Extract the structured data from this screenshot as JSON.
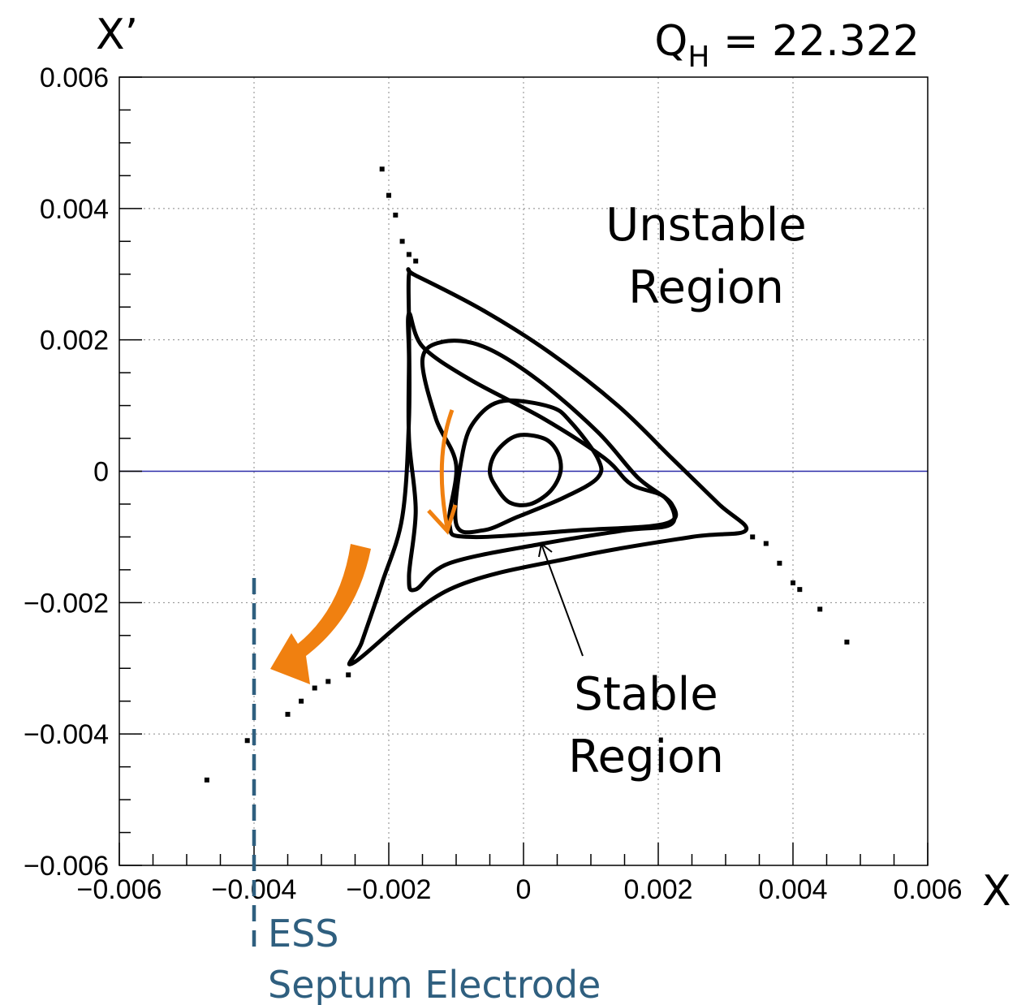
{
  "chart_data": {
    "type": "scatter",
    "title": "",
    "tune_label": {
      "prefix": "Q",
      "subscript": "H",
      "suffix": " = 22.322"
    },
    "xlabel": "X",
    "ylabel": "X’",
    "xlim": [
      -0.006,
      0.006
    ],
    "ylim": [
      -0.006,
      0.006
    ],
    "x_ticks": [
      -0.006,
      -0.004,
      -0.002,
      0,
      0.002,
      0.004,
      0.006
    ],
    "y_ticks": [
      -0.006,
      -0.004,
      -0.002,
      0,
      0.002,
      0.004,
      0.006
    ],
    "x_tick_labels": [
      "−0.006",
      "−0.004",
      "−0.002",
      "0",
      "0.002",
      "0.004",
      "0.006"
    ],
    "y_tick_labels": [
      "−0.006",
      "−0.004",
      "−0.002",
      "0",
      "0.002",
      "0.004",
      "0.006"
    ],
    "grid": true,
    "grid_style": "dotted",
    "zero_line": {
      "y": 0,
      "color": "#2a2aa8"
    },
    "series": [
      {
        "type": "closed-orbit",
        "points": [
          [
            -0.0001,
            0.00054
          ],
          [
            0.0003,
            0.0005
          ],
          [
            0.0005,
            0.0003
          ],
          [
            0.00055,
            0.0
          ],
          [
            0.0004,
            -0.0003
          ],
          [
            0.0001,
            -0.0005
          ],
          [
            -0.0002,
            -0.00048
          ],
          [
            -0.0004,
            -0.00025
          ],
          [
            -0.0005,
            0.0
          ],
          [
            -0.0004,
            0.0003
          ]
        ]
      },
      {
        "type": "closed-orbit",
        "points": [
          [
            -0.0003,
            0.00107
          ],
          [
            0.0004,
            0.00098
          ],
          [
            0.0007,
            0.00075
          ],
          [
            0.0011,
            0.0002
          ],
          [
            0.0011,
            -0.0001
          ],
          [
            0.0006,
            -0.0004
          ],
          [
            -0.0001,
            -0.0007
          ],
          [
            -0.0006,
            -0.0009
          ],
          [
            -0.001,
            -0.0008
          ],
          [
            -0.0009,
            0.0003
          ],
          [
            -0.0007,
            0.0008
          ]
        ]
      },
      {
        "type": "closed-orbit",
        "points": [
          [
            -0.0012,
            0.00197
          ],
          [
            -0.0006,
            0.0019
          ],
          [
            0.0002,
            0.0014
          ],
          [
            0.0011,
            0.0006
          ],
          [
            0.0017,
            -0.0001
          ],
          [
            0.0022,
            -0.0005
          ],
          [
            0.0021,
            -0.0008
          ],
          [
            0.0008,
            -0.0009
          ],
          [
            -0.0008,
            -0.001
          ],
          [
            -0.0011,
            -0.0008
          ],
          [
            -0.001,
            0.0001
          ],
          [
            -0.0013,
            0.0008
          ],
          [
            -0.0015,
            0.0017
          ]
        ]
      },
      {
        "type": "closed-orbit",
        "points": [
          [
            -0.0017,
            0.0017
          ],
          [
            -0.0017,
            0.0024
          ],
          [
            -0.0015,
            0.0019
          ],
          [
            -0.0008,
            0.0014
          ],
          [
            0.0003,
            0.0008
          ],
          [
            0.0012,
            0.0002
          ],
          [
            0.0016,
            -0.0002
          ],
          [
            0.0021,
            -0.0004
          ],
          [
            0.0022,
            -0.0008
          ],
          [
            0.0015,
            -0.0009
          ],
          [
            0.0003,
            -0.0011
          ],
          [
            -0.0011,
            -0.0014
          ],
          [
            -0.0016,
            -0.0018
          ],
          [
            -0.0017,
            -0.0016
          ],
          [
            -0.0016,
            -0.0006
          ],
          [
            -0.0017,
            0.0005
          ]
        ]
      },
      {
        "type": "separatrix",
        "points": [
          [
            -0.0017,
            0.003
          ],
          [
            -0.0016,
            0.00298
          ],
          [
            -0.0006,
            0.00245
          ],
          [
            0.0004,
            0.0018
          ],
          [
            0.0014,
            0.001
          ],
          [
            0.0022,
            0.0002
          ],
          [
            0.0029,
            -0.0005
          ],
          [
            0.0033,
            -0.0009
          ],
          [
            0.0025,
            -0.001
          ],
          [
            0.0008,
            -0.0013
          ],
          [
            -0.0011,
            -0.0018
          ],
          [
            -0.0025,
            -0.0029
          ],
          [
            -0.0024,
            -0.0026
          ],
          [
            -0.0021,
            -0.0017
          ],
          [
            -0.0018,
            -0.0007
          ],
          [
            -0.0017,
            0.0008
          ],
          [
            -0.0017,
            0.0022
          ]
        ]
      },
      {
        "type": "escaping-particles",
        "points": [
          [
            -0.0021,
            0.0046
          ],
          [
            -0.002,
            0.0042
          ],
          [
            -0.0019,
            0.0039
          ],
          [
            -0.0018,
            0.0035
          ],
          [
            -0.0017,
            0.0033
          ],
          [
            -0.0016,
            0.0032
          ],
          [
            0.0034,
            -0.001
          ],
          [
            0.0036,
            -0.0011
          ],
          [
            0.0038,
            -0.0014
          ],
          [
            0.004,
            -0.0017
          ],
          [
            0.0041,
            -0.0018
          ],
          [
            0.0044,
            -0.0021
          ],
          [
            0.0048,
            -0.0026
          ],
          [
            -0.0026,
            -0.0031
          ],
          [
            -0.0029,
            -0.0032
          ],
          [
            -0.0031,
            -0.0033
          ],
          [
            -0.0033,
            -0.0035
          ],
          [
            -0.0035,
            -0.0037
          ],
          [
            -0.0041,
            -0.0041
          ],
          [
            -0.0047,
            -0.0047
          ]
        ]
      }
    ],
    "annotations": [
      {
        "key": "unstable",
        "lines": [
          "Unstable",
          "Region"
        ]
      },
      {
        "key": "stable",
        "lines": [
          "Stable",
          "Region"
        ]
      },
      {
        "key": "ess",
        "lines": [
          "ESS",
          "Septum Electrode"
        ],
        "x": -0.004,
        "color": "#2f5f7f"
      }
    ],
    "arrow_color": "#f08010"
  }
}
